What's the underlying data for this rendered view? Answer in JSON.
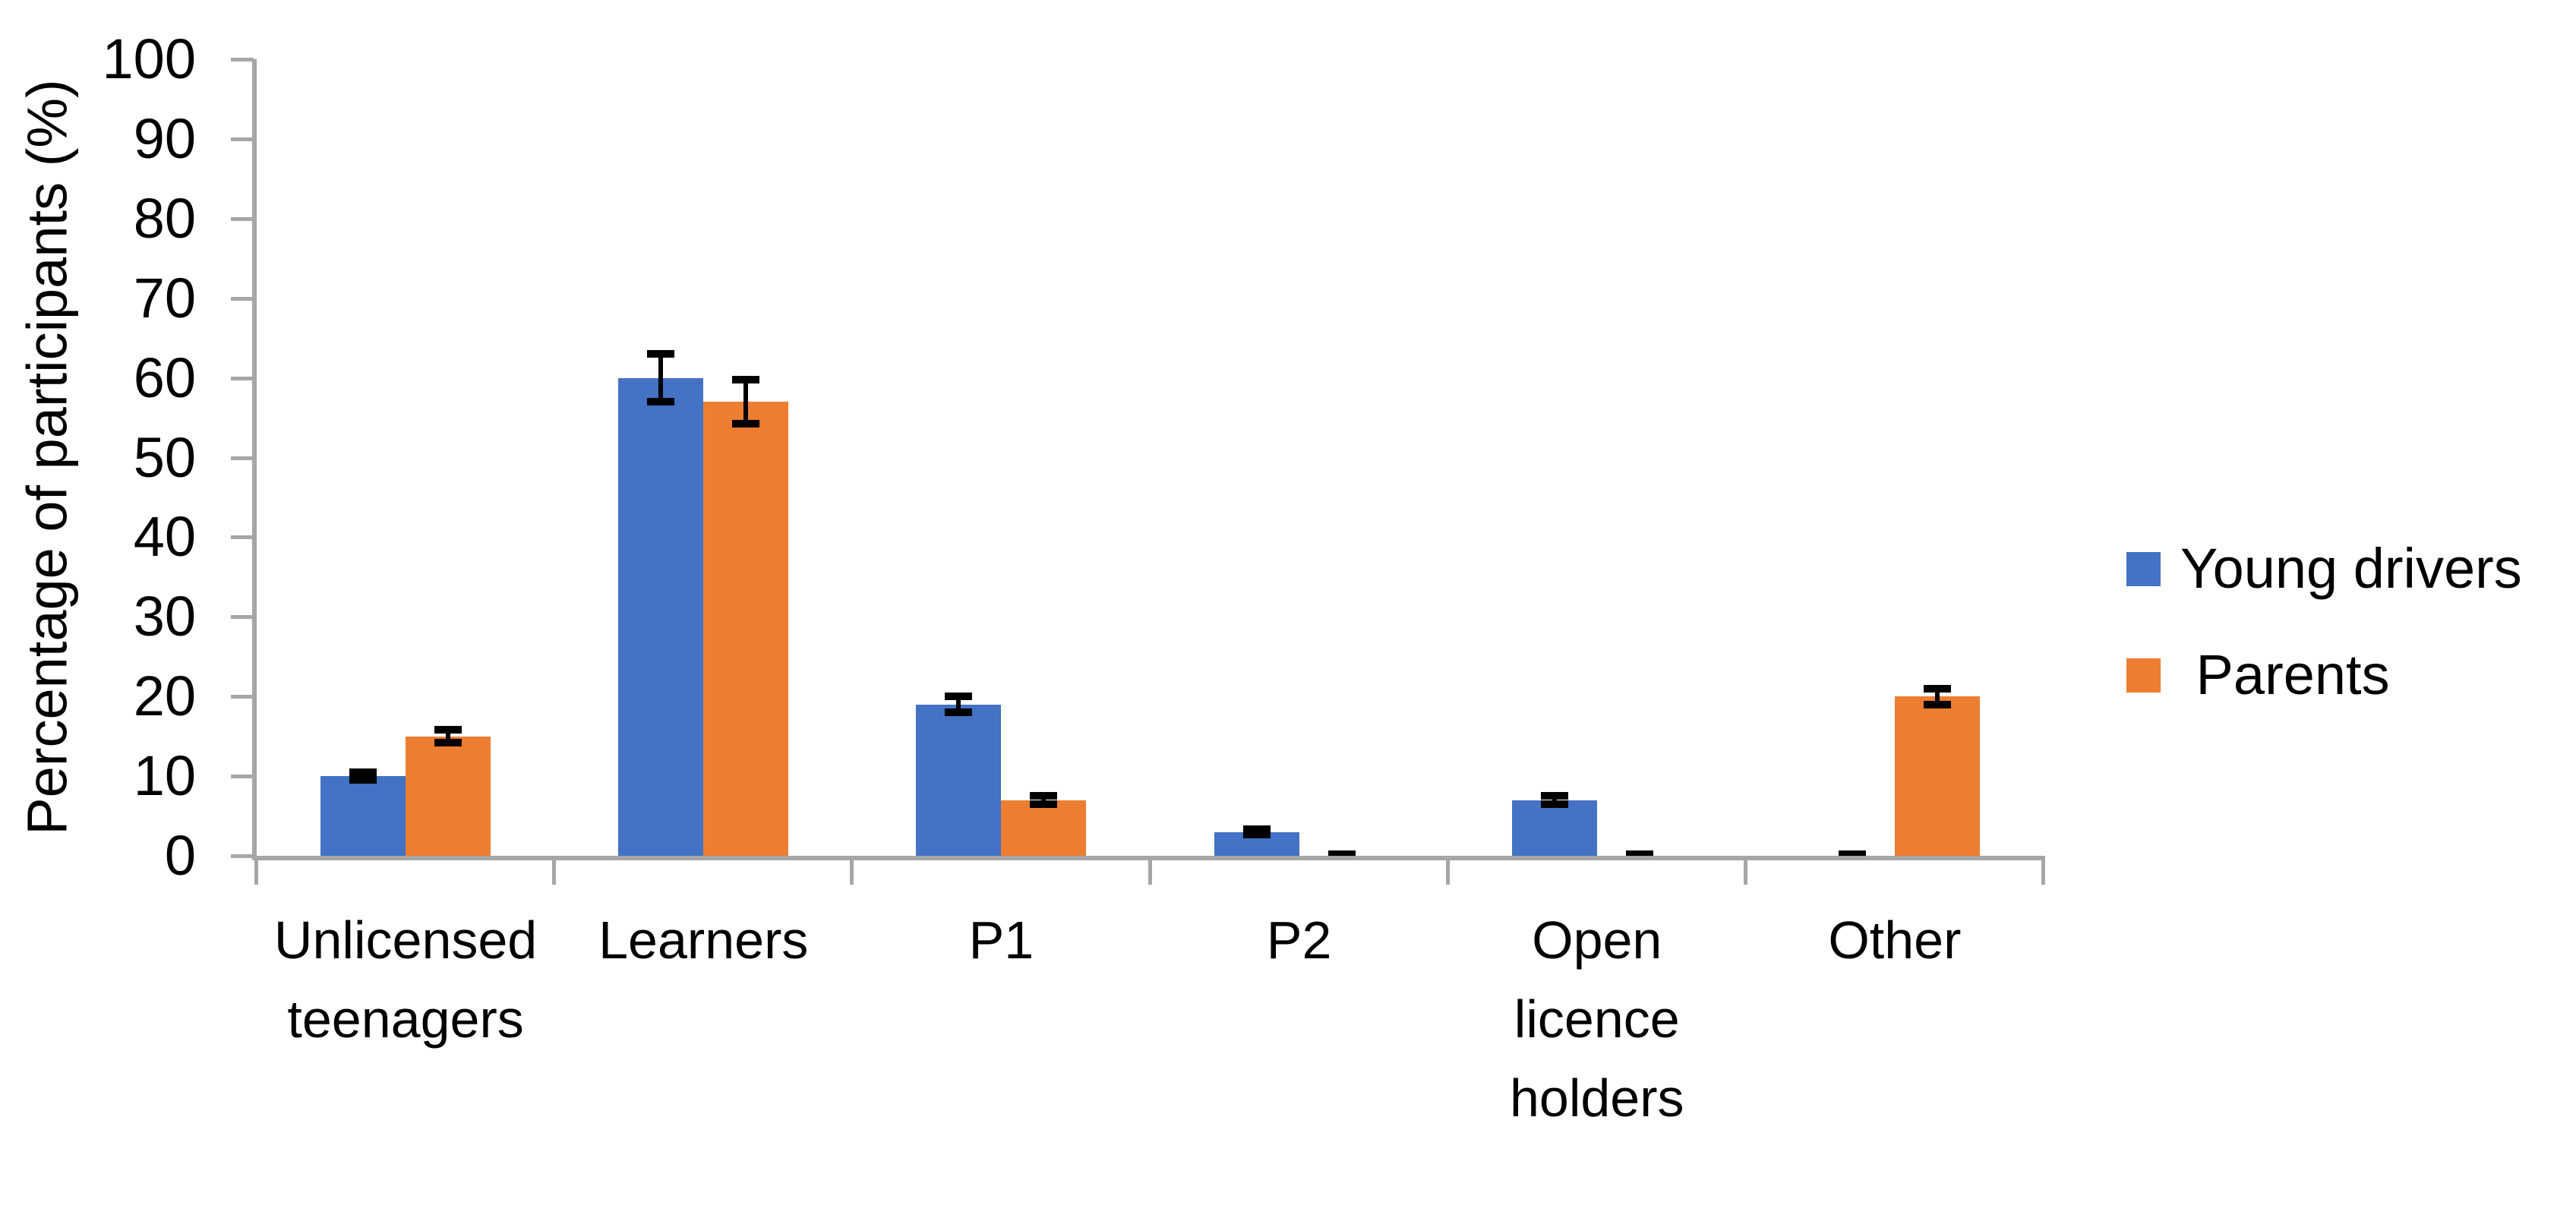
{
  "chart_data": {
    "type": "bar",
    "title": "",
    "ylabel": "Percentage of participants (%)",
    "xlabel": "",
    "ylim": [
      0,
      100
    ],
    "yticks": [
      0,
      10,
      20,
      30,
      40,
      50,
      60,
      70,
      80,
      90,
      100
    ],
    "grid": false,
    "legend_position": "right",
    "error_bars": true,
    "categories": [
      "Unlicensed teenagers",
      "Learners",
      "P1",
      "P2",
      "Open licence holders",
      "Other"
    ],
    "categories_lines": [
      [
        "Unlicensed",
        "teenagers"
      ],
      [
        "Learners"
      ],
      [
        "P1"
      ],
      [
        "P2"
      ],
      [
        "Open",
        "licence",
        "holders"
      ],
      [
        "Other"
      ]
    ],
    "series": [
      {
        "name": "Young drivers",
        "color": "#4472C4",
        "values": [
          10,
          60,
          19,
          3,
          7,
          0
        ],
        "errors": [
          0.5,
          3.0,
          1.0,
          0.3,
          0.5,
          0.2
        ]
      },
      {
        "name": "Parents",
        "color": "#ED7D31",
        "values": [
          15,
          57,
          7,
          0,
          0,
          20
        ],
        "errors": [
          0.8,
          2.8,
          0.5,
          0.2,
          0.2,
          1.0
        ]
      }
    ]
  },
  "legend": {
    "items": [
      {
        "label": "Young drivers",
        "color": "#4472C4"
      },
      {
        "label": " Parents",
        "color": "#ED7D31"
      }
    ]
  },
  "axes": {
    "axis_color": "#A6A6A6",
    "error_bar_color": "#000000"
  }
}
